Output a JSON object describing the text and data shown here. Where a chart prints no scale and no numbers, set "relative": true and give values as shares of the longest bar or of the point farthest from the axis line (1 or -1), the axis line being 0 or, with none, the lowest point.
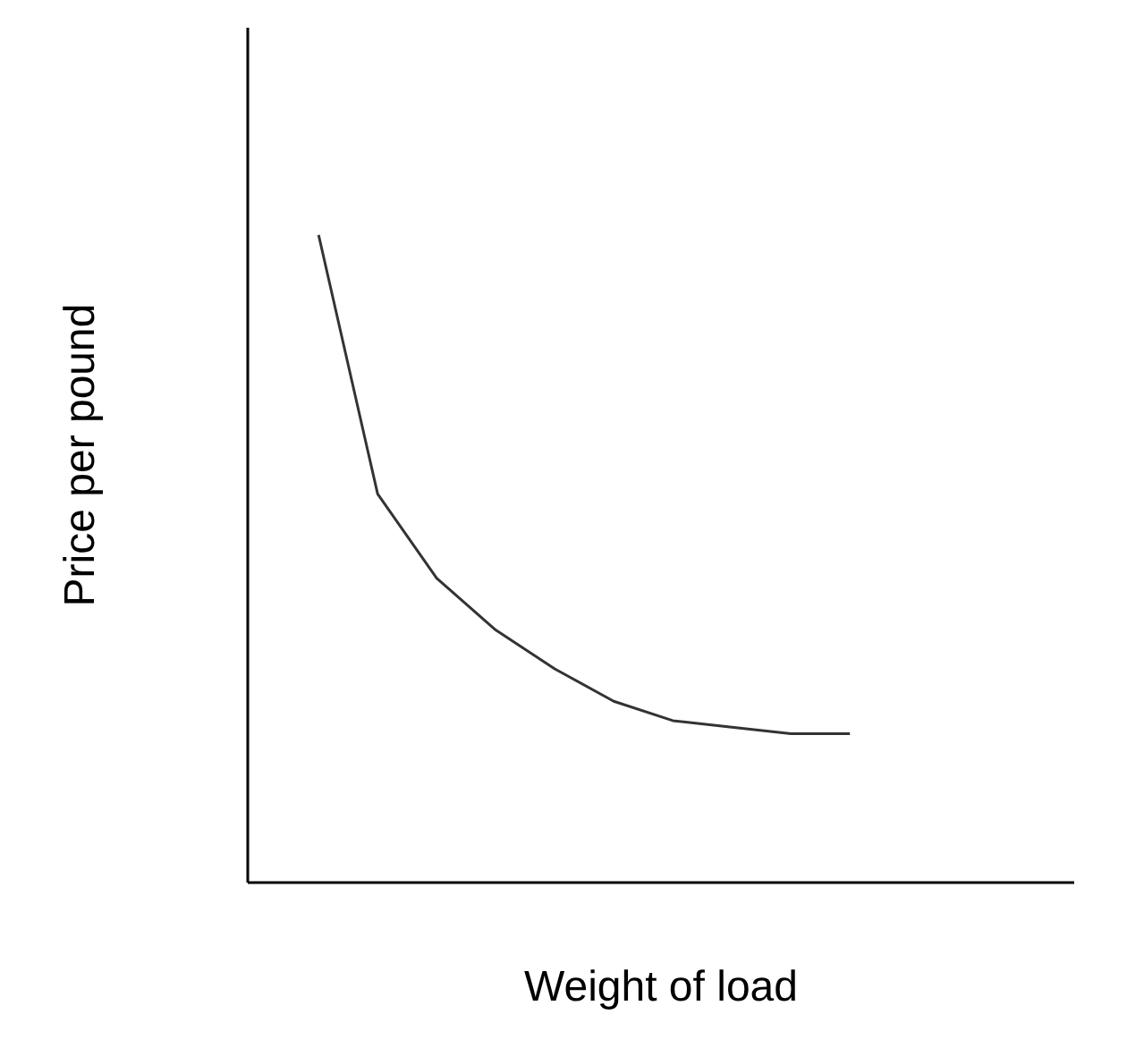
{
  "chart_data": {
    "type": "line",
    "relative": true,
    "xlabel": "Weight of load",
    "ylabel": "Price per pound",
    "categories": [
      null,
      null,
      null,
      null,
      null,
      null,
      null,
      null,
      null,
      null
    ],
    "series": [
      {
        "color": "#333333",
        "values": [
          1.0,
          0.6,
          0.47,
          0.39,
          0.33,
          0.28,
          0.25,
          0.24,
          0.23,
          0.23
        ]
      }
    ],
    "marker": "none"
  }
}
